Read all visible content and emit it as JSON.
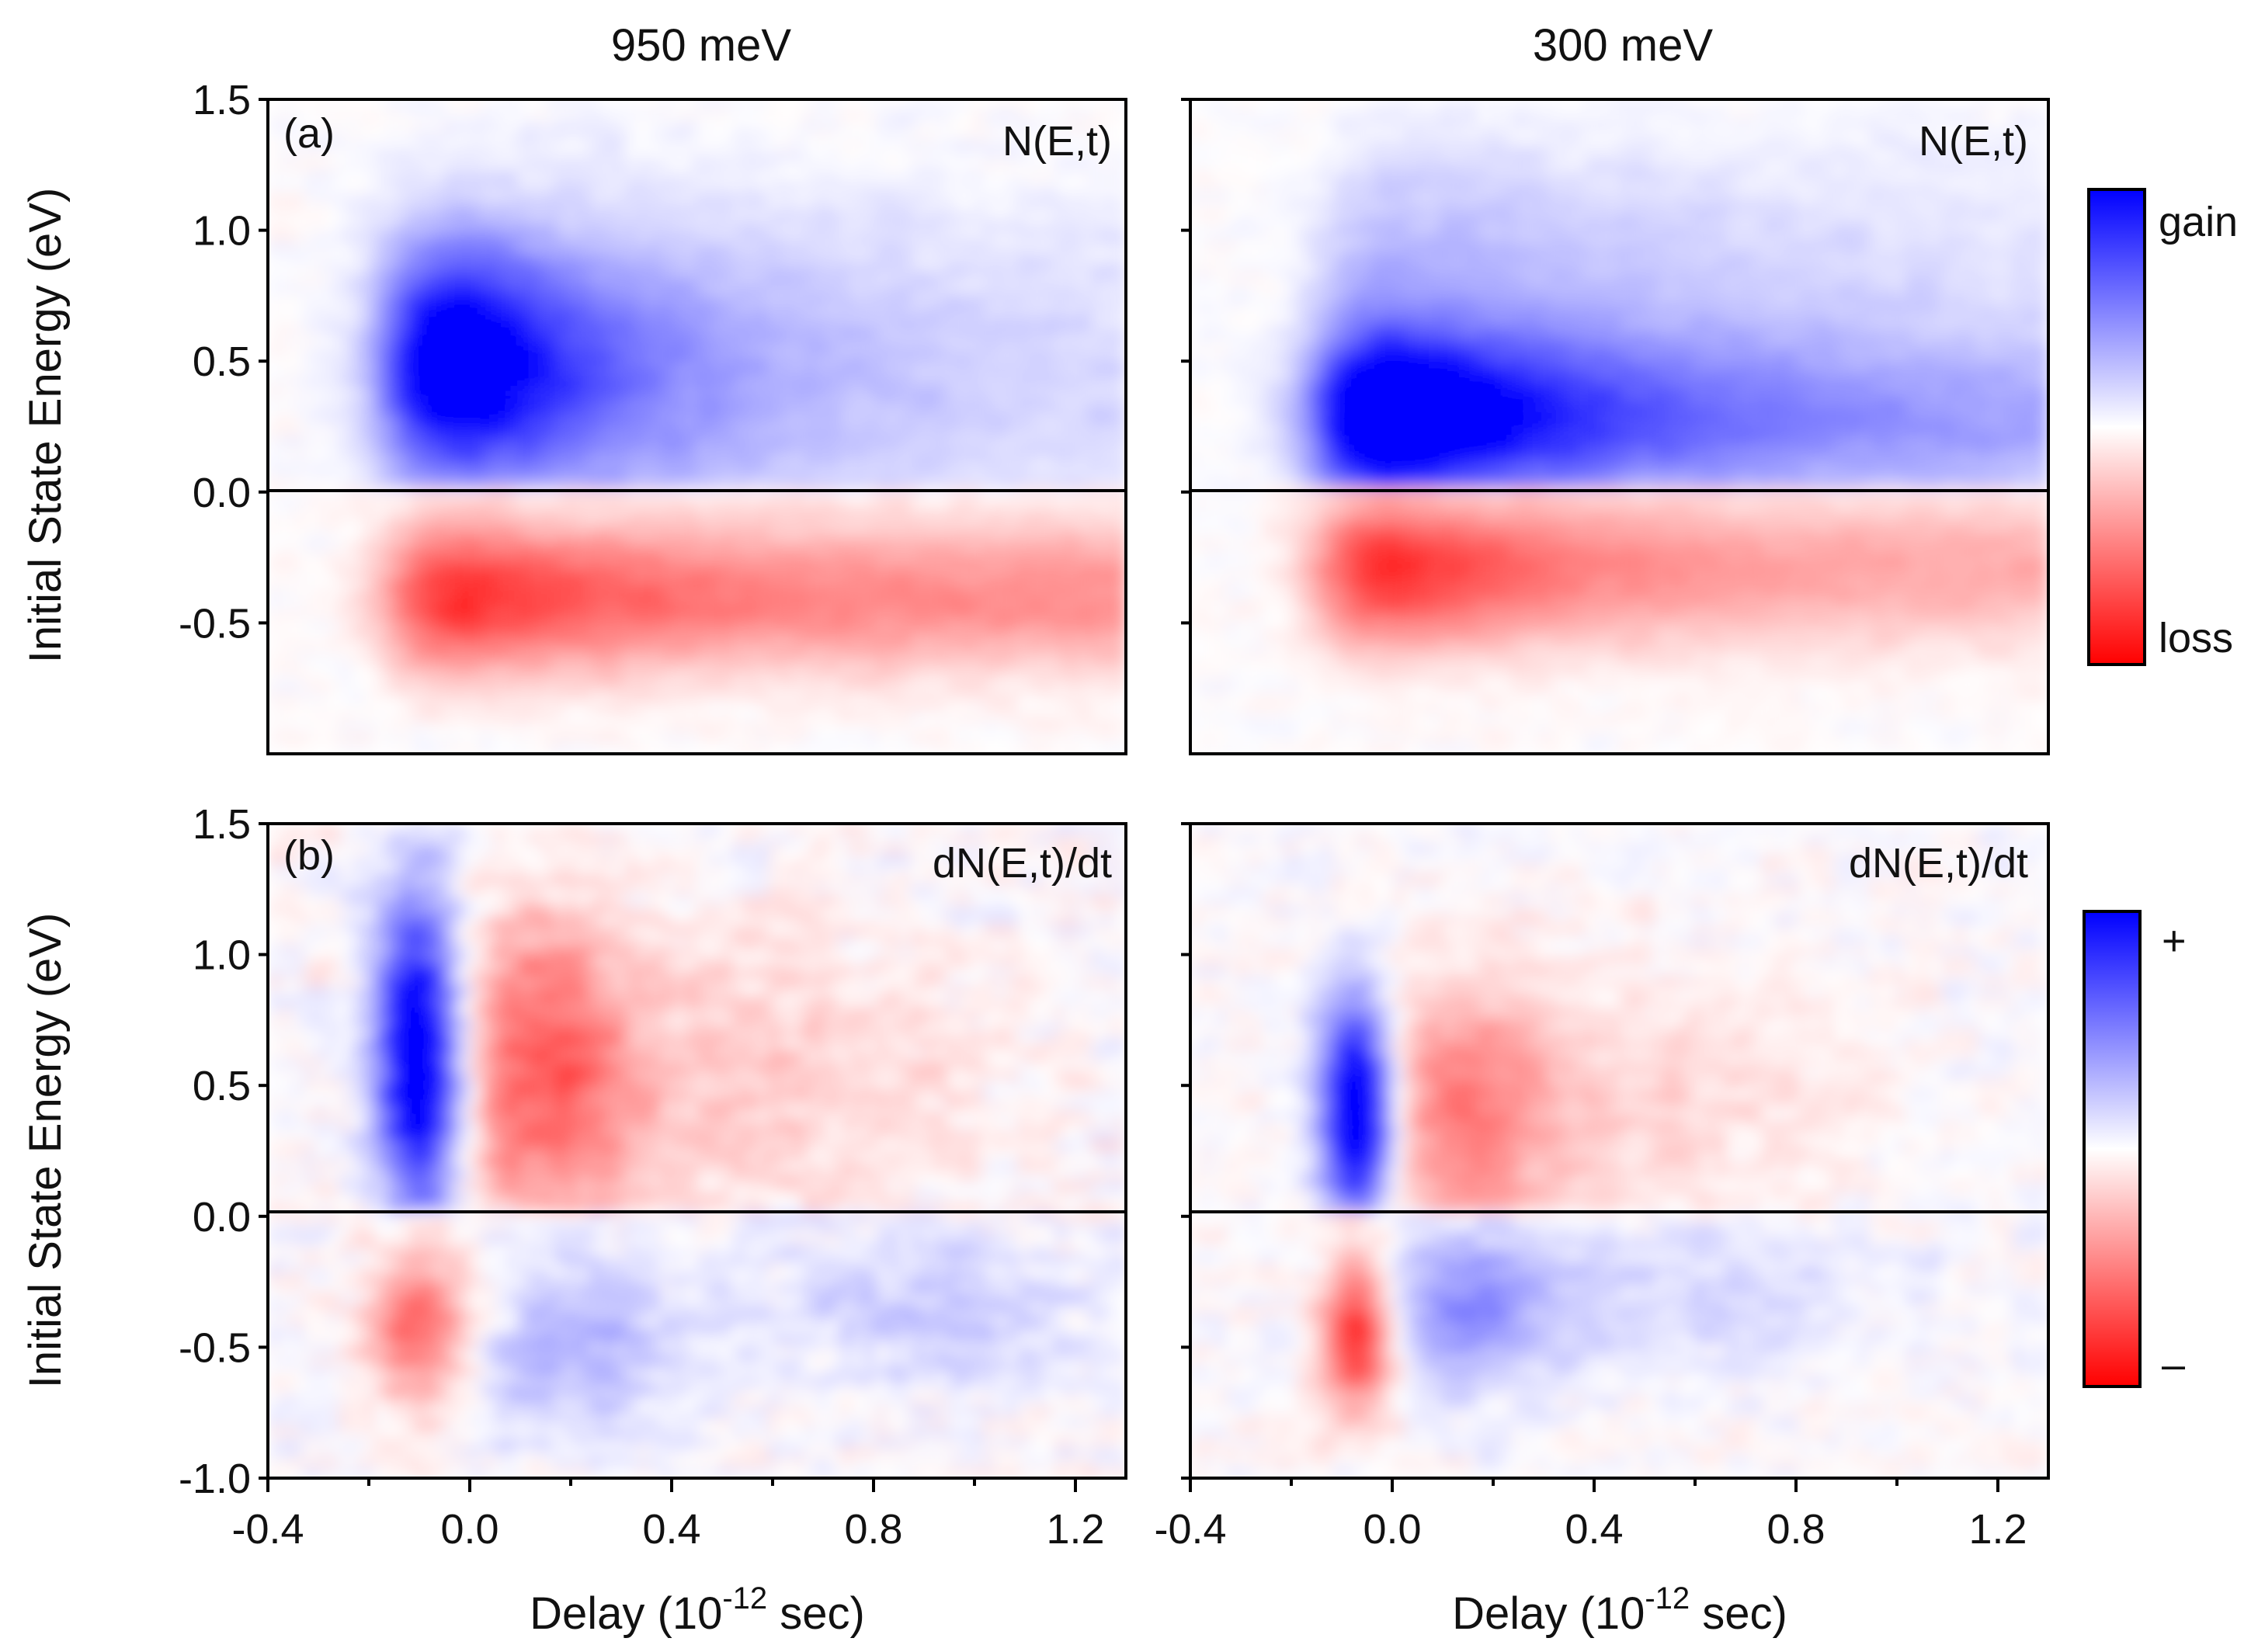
{
  "chart_data": {
    "type": "heatmap",
    "columns": [
      {
        "title": "950 meV",
        "pump": 950
      },
      {
        "title": "300 meV",
        "pump": 300
      }
    ],
    "rows": [
      {
        "tag": "(a)",
        "label": "N(E,t)",
        "ylim": [
          -1.0,
          1.5
        ],
        "yticks": [
          1.5,
          1.0,
          0.5,
          0.0,
          -0.5
        ],
        "ytick_labels": [
          "1.5",
          "1.0",
          "0.5",
          "0.0",
          "-0.5"
        ],
        "colorbar": {
          "top_label": "gain",
          "bottom_label": "loss"
        }
      },
      {
        "tag": "(b)",
        "label": "dN(E,t)/dt",
        "ylim": [
          -1.0,
          1.5
        ],
        "yticks": [
          1.5,
          1.0,
          0.5,
          0.0,
          -0.5,
          -1.0
        ],
        "ytick_labels": [
          "1.5",
          "1.0",
          "0.5",
          "0.0",
          "-0.5",
          "-1.0"
        ],
        "colorbar": {
          "top_label": "+",
          "bottom_label": "–"
        }
      }
    ],
    "xlim": [
      -0.4,
      1.3
    ],
    "xticks": [
      -0.4,
      0.0,
      0.4,
      0.8,
      1.2
    ],
    "xtick_labels": [
      "-0.4",
      "0.0",
      "0.4",
      "0.8",
      "1.2"
    ],
    "xminor": [
      -0.2,
      0.2,
      0.6,
      1.0
    ],
    "xlabel": {
      "prefix": "Delay (10",
      "exponent": "-12",
      "suffix": " sec)"
    },
    "ylabel": "Initial State Energy (eV)",
    "fermi_level": 0.0,
    "colorscale": {
      "positive": "#0000ff",
      "zero": "#ffffff",
      "negative": "#ff0000"
    },
    "features": {
      "N_950": {
        "gain_peak": {
          "t": 0.02,
          "E": 0.5
        },
        "loss_peak": {
          "t": 0.05,
          "E": -0.4
        },
        "onset_t": -0.15
      },
      "N_300": {
        "gain_peak": {
          "t": 0.05,
          "E": 0.3
        },
        "loss_peak": {
          "t": 0.05,
          "E": -0.3
        },
        "onset_t": -0.15
      },
      "dN_950": {
        "positive_peak": {
          "t": -0.1,
          "E": 0.6
        },
        "negative_peak": {
          "t": 0.12,
          "E": 0.5
        },
        "lower_negative": {
          "t": -0.1,
          "E": -0.4
        }
      },
      "dN_300": {
        "positive_peak": {
          "t": -0.07,
          "E": 0.4
        },
        "negative_peak": {
          "t": 0.1,
          "E": 0.4
        },
        "lower_negative": {
          "t": -0.07,
          "E": -0.45
        }
      }
    }
  }
}
